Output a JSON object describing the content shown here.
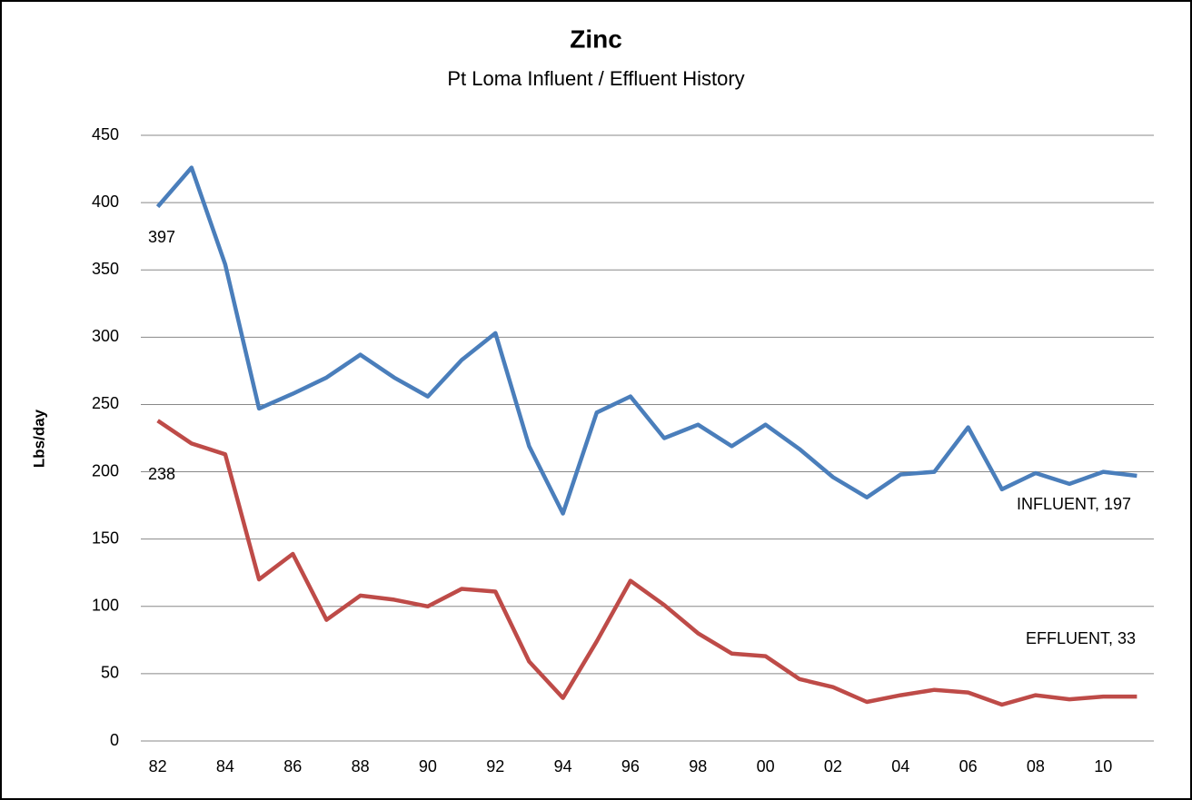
{
  "chart_data": {
    "type": "line",
    "title": "Zinc",
    "subtitle": "Pt Loma Influent / Effluent History",
    "y_label": "Lbs/day",
    "categories": [
      "82",
      null,
      "84",
      null,
      "86",
      null,
      "88",
      null,
      "90",
      null,
      "92",
      null,
      "94",
      null,
      "96",
      null,
      "98",
      null,
      "00",
      null,
      "02",
      null,
      "04",
      null,
      "06",
      null,
      "08",
      null,
      "10",
      null
    ],
    "series": [
      {
        "name": "INFLUENT",
        "color": "#4a7ebb",
        "values": [
          397,
          426,
          354,
          247,
          258,
          270,
          287,
          270,
          256,
          283,
          303,
          219,
          169,
          244,
          256,
          225,
          235,
          219,
          235,
          217,
          196,
          181,
          198,
          200,
          233,
          187,
          199,
          191,
          200,
          197
        ]
      },
      {
        "name": "EFFLUENT",
        "color": "#be4b48",
        "values": [
          238,
          221,
          213,
          120,
          139,
          90,
          108,
          105,
          100,
          113,
          111,
          59,
          32,
          74,
          119,
          101,
          80,
          65,
          63,
          46,
          40,
          29,
          34,
          38,
          36,
          27,
          34,
          31,
          33,
          33
        ]
      }
    ],
    "annotations": [
      "397",
      "238",
      "INFLUENT, 197",
      "EFFLUENT, 33"
    ],
    "ylim": [
      0,
      450
    ],
    "yticks": [
      0,
      50,
      100,
      150,
      200,
      250,
      300,
      350,
      400,
      450
    ],
    "grid": true
  }
}
